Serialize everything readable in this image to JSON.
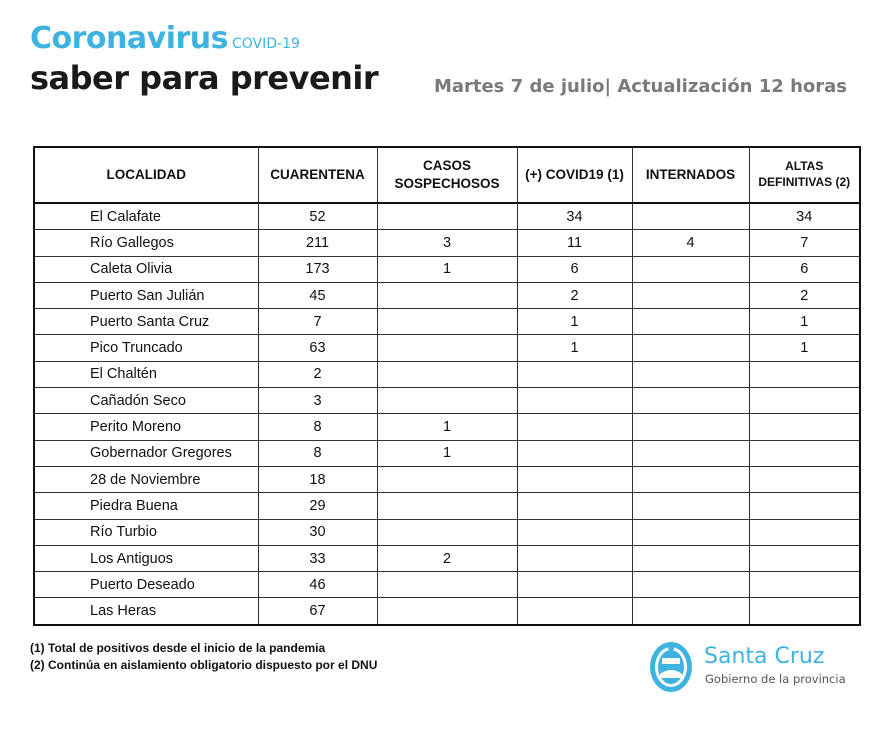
{
  "header": {
    "title_main": "Coronavirus",
    "title_tag": "COVID-19",
    "subtitle": "saber para prevenir",
    "date_line": "Martes 7 de julio| Actualización 12 horas"
  },
  "table": {
    "columns": [
      "LOCALIDAD",
      "CUARENTENA",
      "CASOS SOSPECHOSOS",
      "(+) COVID19 (1)",
      "INTERNADOS",
      "ALTAS DEFINITIVAS (2)"
    ],
    "rows": [
      {
        "localidad": "El Calafate",
        "cuarentena": "52",
        "sospechosos": "",
        "covid": "34",
        "internados": "",
        "altas": "34"
      },
      {
        "localidad": "Río Gallegos",
        "cuarentena": "211",
        "sospechosos": "3",
        "covid": "11",
        "internados": "4",
        "altas": "7"
      },
      {
        "localidad": "Caleta Olivia",
        "cuarentena": "173",
        "sospechosos": "1",
        "covid": "6",
        "internados": "",
        "altas": "6"
      },
      {
        "localidad": "Puerto San Julián",
        "cuarentena": "45",
        "sospechosos": "",
        "covid": "2",
        "internados": "",
        "altas": "2"
      },
      {
        "localidad": "Puerto Santa Cruz",
        "cuarentena": "7",
        "sospechosos": "",
        "covid": "1",
        "internados": "",
        "altas": "1"
      },
      {
        "localidad": "Pico Truncado",
        "cuarentena": "63",
        "sospechosos": "",
        "covid": "1",
        "internados": "",
        "altas": "1"
      },
      {
        "localidad": "El Chaltén",
        "cuarentena": "2",
        "sospechosos": "",
        "covid": "",
        "internados": "",
        "altas": ""
      },
      {
        "localidad": "Cañadón Seco",
        "cuarentena": "3",
        "sospechosos": "",
        "covid": "",
        "internados": "",
        "altas": ""
      },
      {
        "localidad": "Perito Moreno",
        "cuarentena": "8",
        "sospechosos": "1",
        "covid": "",
        "internados": "",
        "altas": ""
      },
      {
        "localidad": "Gobernador Gregores",
        "cuarentena": "8",
        "sospechosos": "1",
        "covid": "",
        "internados": "",
        "altas": ""
      },
      {
        "localidad": "28 de Noviembre",
        "cuarentena": "18",
        "sospechosos": "",
        "covid": "",
        "internados": "",
        "altas": ""
      },
      {
        "localidad": "Piedra Buena",
        "cuarentena": "29",
        "sospechosos": "",
        "covid": "",
        "internados": "",
        "altas": ""
      },
      {
        "localidad": "Río Turbio",
        "cuarentena": "30",
        "sospechosos": "",
        "covid": "",
        "internados": "",
        "altas": ""
      },
      {
        "localidad": "Los Antiguos",
        "cuarentena": "33",
        "sospechosos": "2",
        "covid": "",
        "internados": "",
        "altas": ""
      },
      {
        "localidad": "Puerto Deseado",
        "cuarentena": "46",
        "sospechosos": "",
        "covid": "",
        "internados": "",
        "altas": ""
      },
      {
        "localidad": "Las Heras",
        "cuarentena": "67",
        "sospechosos": "",
        "covid": "",
        "internados": "",
        "altas": ""
      }
    ]
  },
  "footnotes": [
    "(1) Total de positivos desde el inicio de la pandemia",
    "(2) Continúa en aislamiento obligatorio dispuesto por el DNU"
  ],
  "logo": {
    "name": "Santa Cruz",
    "subtitle": "Gobierno de la provincia",
    "icon": "provincial-seal-icon",
    "color": "#3fb3e0"
  },
  "colors": {
    "accent": "#3fb3e0",
    "date_text": "#7a7a7a"
  }
}
